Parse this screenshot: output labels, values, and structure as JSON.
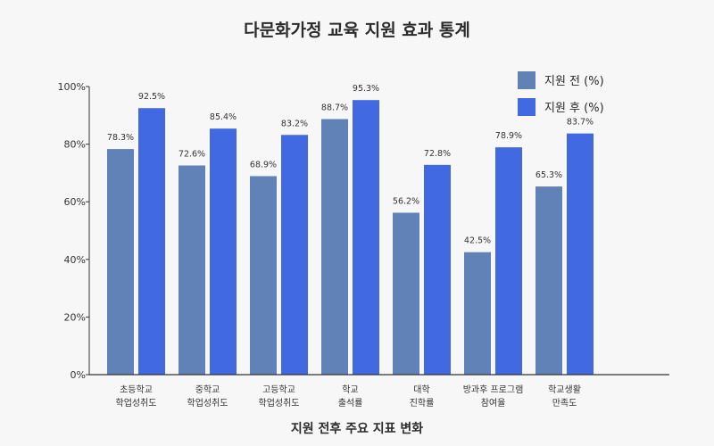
{
  "chart_data": {
    "type": "bar",
    "title": "다문화가정 교육 지원 효과 통계",
    "xlabel": "지원 전후 주요 지표 변화",
    "ylabel": "",
    "ylim": [
      0,
      100
    ],
    "y_ticks": [
      "0%",
      "20%",
      "40%",
      "60%",
      "80%",
      "100%"
    ],
    "legend_position": "top-right",
    "grid": false,
    "categories": [
      [
        "초등학교",
        "학업성취도"
      ],
      [
        "중학교",
        "학업성취도"
      ],
      [
        "고등학교",
        "학업성취도"
      ],
      [
        "학교",
        "출석률"
      ],
      [
        "대학",
        "진학률"
      ],
      [
        "방과후 프로그램",
        "참여율"
      ],
      [
        "학교생활",
        "만족도"
      ]
    ],
    "series": [
      {
        "name": "지원 전 (%)",
        "color": "#6082b6",
        "values": [
          78.3,
          72.6,
          68.9,
          88.7,
          56.2,
          42.5,
          65.3
        ],
        "value_labels": [
          "78.3%",
          "72.6%",
          "68.9%",
          "88.7%",
          "56.2%",
          "42.5%",
          "65.3%"
        ]
      },
      {
        "name": "지원 후 (%)",
        "color": "#4169e1",
        "values": [
          92.5,
          85.4,
          83.2,
          95.3,
          72.8,
          78.9,
          83.7
        ],
        "value_labels": [
          "92.5%",
          "85.4%",
          "83.2%",
          "95.3%",
          "72.8%",
          "78.9%",
          "83.7%"
        ]
      }
    ]
  }
}
